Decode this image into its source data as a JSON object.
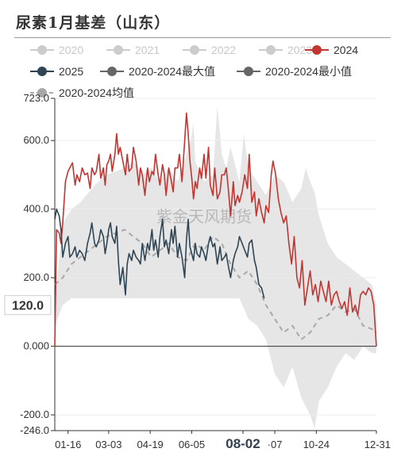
{
  "title": "尿素1月基差（山东）",
  "legend": [
    {
      "label": "2020",
      "state": "inactive"
    },
    {
      "label": "2021",
      "state": "inactive"
    },
    {
      "label": "2022",
      "state": "inactive"
    },
    {
      "label": "2023",
      "state": "inactive"
    },
    {
      "label": "2024",
      "state": "active"
    },
    {
      "label": "2025",
      "state": "active"
    },
    {
      "label": "2020-2024最大值",
      "state": "active"
    },
    {
      "label": "2020-2024最小值",
      "state": "active"
    },
    {
      "label": "2020-2024均值",
      "state": "active"
    }
  ],
  "watermark": "紫金天风期货",
  "cursor": {
    "x_label": "08-02",
    "y_value_label": "120.0"
  },
  "colors": {
    "series_2024": "#c23531",
    "series_2025": "#2f4554",
    "band_fill": "#e6e6e6",
    "mean_line": "#a8a8a8",
    "legend_inactive": "#cccccc",
    "legend_max_min": "#666666"
  },
  "chart_data": {
    "type": "line",
    "title": "尿素1月基差（山东）",
    "ylim": [
      -246.0,
      723.0
    ],
    "y_ticks": [
      723.0,
      600.0,
      400.0,
      200.0,
      0.0,
      -200.0,
      -246.0
    ],
    "y_tick_labels": [
      "723.0",
      "600.0",
      "400.0",
      "200.0",
      "0.000",
      "-200.0",
      "-246.0"
    ],
    "x_tick_labels": [
      "01-16",
      "03-03",
      "04-19",
      "06-05",
      "08-02",
      "·07",
      "10-24",
      "12-31"
    ],
    "x_tick_days": [
      16,
      62,
      109,
      156,
      214,
      250,
      297,
      365
    ],
    "series": [
      {
        "name": "2024",
        "days": [
          1,
          3,
          6,
          8,
          10,
          13,
          16,
          18,
          21,
          24,
          26,
          29,
          32,
          35,
          38,
          41,
          43,
          46,
          48,
          51,
          53,
          56,
          58,
          60,
          62,
          64,
          66,
          69,
          71,
          73,
          75,
          78,
          81,
          83,
          85,
          88,
          90,
          93,
          96,
          98,
          100,
          103,
          106,
          108,
          111,
          113,
          115,
          118,
          120,
          123,
          125,
          127,
          130,
          133,
          135,
          137,
          140,
          142,
          145,
          148,
          150,
          152,
          154,
          156,
          158,
          160,
          162,
          165,
          167,
          170,
          172,
          175,
          177,
          180,
          182,
          185,
          188,
          190,
          193,
          195,
          197,
          200,
          203,
          205,
          208,
          210,
          213,
          216,
          219,
          221,
          224,
          227,
          229,
          232,
          235,
          238,
          240,
          243,
          246,
          248,
          251,
          254,
          257,
          260,
          263,
          266,
          269,
          272,
          275,
          278,
          281,
          284,
          287,
          290,
          293,
          296,
          299,
          302,
          305,
          308,
          311,
          314,
          317,
          320,
          323,
          326,
          329,
          332,
          335,
          338,
          341,
          344,
          347,
          350,
          353,
          356,
          359,
          362,
          365
        ],
        "values": [
          0,
          340,
          330,
          300,
          360,
          480,
          510,
          520,
          535,
          470,
          500,
          480,
          520,
          500,
          505,
          460,
          520,
          500,
          510,
          560,
          490,
          520,
          470,
          530,
          540,
          560,
          510,
          560,
          620,
          560,
          580,
          540,
          500,
          560,
          510,
          520,
          580,
          540,
          470,
          520,
          500,
          440,
          520,
          480,
          510,
          500,
          560,
          500,
          470,
          530,
          500,
          440,
          520,
          480,
          450,
          520,
          520,
          560,
          480,
          600,
          680,
          620,
          540,
          490,
          430,
          480,
          460,
          520,
          490,
          560,
          490,
          580,
          470,
          440,
          520,
          430,
          450,
          500,
          500,
          520,
          470,
          380,
          480,
          410,
          440,
          420,
          450,
          500,
          460,
          560,
          420,
          450,
          380,
          430,
          390,
          360,
          410,
          390,
          500,
          540,
          500,
          430,
          390,
          360,
          380,
          300,
          240,
          320,
          200,
          170,
          250,
          120,
          170,
          220,
          150,
          180,
          130,
          190,
          160,
          130,
          190,
          120,
          150,
          160,
          130,
          110,
          130,
          90,
          170,
          100,
          120,
          90,
          150,
          160,
          150,
          170,
          160,
          120,
          0
        ]
      },
      {
        "name": "2025",
        "days": [
          1,
          3,
          6,
          8,
          10,
          13,
          16,
          18,
          21,
          24,
          26,
          29,
          32,
          35,
          38,
          41,
          43,
          46,
          48,
          51,
          53,
          56,
          58,
          60,
          62,
          64,
          66,
          69,
          71,
          73,
          75,
          78,
          81,
          83,
          85,
          88,
          90,
          93,
          96,
          98,
          100,
          103,
          106,
          108,
          111,
          113,
          115,
          118,
          120,
          123,
          125,
          127,
          130,
          133,
          135,
          137,
          140,
          142,
          145,
          148,
          150,
          152,
          154,
          156,
          158,
          160,
          162,
          165,
          167,
          170,
          172,
          175,
          177,
          180,
          182,
          185,
          188,
          190,
          193,
          195,
          197,
          200,
          203,
          205,
          208,
          210,
          213,
          216,
          219,
          221,
          224,
          227,
          229,
          232,
          235,
          238
        ],
        "values": [
          370,
          400,
          380,
          340,
          260,
          300,
          320,
          260,
          270,
          290,
          260,
          280,
          270,
          250,
          300,
          330,
          360,
          300,
          290,
          310,
          340,
          320,
          270,
          300,
          340,
          360,
          320,
          300,
          350,
          250,
          180,
          230,
          150,
          240,
          270,
          250,
          280,
          260,
          250,
          240,
          300,
          250,
          300,
          280,
          340,
          280,
          310,
          260,
          320,
          370,
          290,
          310,
          270,
          340,
          300,
          350,
          260,
          300,
          260,
          200,
          310,
          370,
          290,
          270,
          250,
          300,
          270,
          260,
          290,
          270,
          250,
          300,
          320,
          290,
          300,
          240,
          290,
          250,
          260,
          270,
          240,
          200,
          250,
          270,
          290,
          320,
          300,
          280,
          260,
          300,
          310,
          250,
          230,
          180,
          170,
          140
        ]
      },
      {
        "name": "2020-2024最大值",
        "days": [
          1,
          10,
          20,
          30,
          40,
          50,
          60,
          70,
          80,
          90,
          100,
          110,
          120,
          130,
          140,
          150,
          155,
          158,
          160,
          170,
          180,
          185,
          188,
          190,
          195,
          200,
          210,
          215,
          220,
          230,
          240,
          250,
          260,
          270,
          280,
          285,
          290,
          295,
          300,
          310,
          320,
          330,
          340,
          350,
          360,
          365
        ],
        "values": [
          120,
          360,
          400,
          420,
          450,
          480,
          500,
          510,
          520,
          540,
          500,
          520,
          480,
          520,
          480,
          560,
          600,
          650,
          540,
          480,
          500,
          700,
          620,
          560,
          520,
          580,
          480,
          620,
          520,
          480,
          440,
          500,
          480,
          420,
          460,
          520,
          480,
          450,
          380,
          300,
          260,
          240,
          220,
          200,
          180,
          120
        ]
      },
      {
        "name": "2020-2024最小值",
        "days": [
          1,
          10,
          20,
          30,
          40,
          50,
          60,
          70,
          80,
          90,
          100,
          110,
          120,
          130,
          140,
          150,
          160,
          170,
          180,
          190,
          200,
          210,
          220,
          230,
          240,
          250,
          260,
          270,
          280,
          290,
          295,
          300,
          310,
          320,
          330,
          340,
          350,
          360,
          365
        ],
        "values": [
          60,
          120,
          140,
          140,
          140,
          140,
          140,
          140,
          140,
          140,
          140,
          140,
          140,
          140,
          140,
          140,
          140,
          140,
          140,
          140,
          140,
          140,
          80,
          60,
          20,
          -80,
          -120,
          -60,
          -150,
          -200,
          -240,
          -160,
          -120,
          -60,
          -20,
          -40,
          0,
          -20,
          -20
        ]
      },
      {
        "name": "2020-2024均值",
        "days": [
          1,
          10,
          20,
          30,
          40,
          50,
          60,
          70,
          80,
          90,
          100,
          110,
          120,
          130,
          140,
          150,
          160,
          170,
          180,
          190,
          200,
          210,
          220,
          230,
          240,
          250,
          260,
          270,
          280,
          290,
          300,
          310,
          320,
          330,
          340,
          350,
          360,
          365
        ],
        "values": [
          180,
          200,
          240,
          260,
          280,
          300,
          320,
          330,
          340,
          320,
          300,
          260,
          280,
          300,
          260,
          250,
          300,
          280,
          320,
          300,
          240,
          200,
          220,
          180,
          120,
          80,
          40,
          60,
          20,
          40,
          80,
          90,
          120,
          100,
          110,
          60,
          50,
          40
        ]
      }
    ]
  }
}
